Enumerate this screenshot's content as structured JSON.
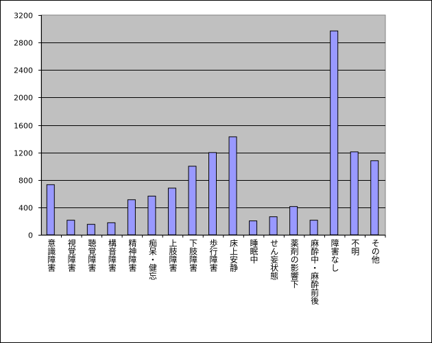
{
  "chart_data": {
    "type": "bar",
    "title": "",
    "xlabel": "",
    "ylabel": "",
    "ylim": [
      0,
      3200
    ],
    "yticks": [
      0,
      400,
      800,
      1200,
      1600,
      2000,
      2400,
      2800,
      3200
    ],
    "grid": true,
    "categories": [
      "意識障害",
      "視覚障害",
      "聴覚障害",
      "構音障害",
      "精神障害",
      "痴呆・健忘",
      "上肢障害",
      "下肢障害",
      "歩行障害",
      "床上安静",
      "睡眠中",
      "せん妄状態",
      "薬剤の影響下",
      "麻酔中・麻酔前後",
      "障害なし",
      "不明",
      "その他"
    ],
    "values": [
      730,
      213,
      153,
      176,
      511,
      564,
      680,
      999,
      1198,
      1427,
      203,
      263,
      412,
      213,
      2969,
      1208,
      1079
    ],
    "colors": {
      "bar": "#9999ff",
      "plot_background": "#c0c0c0",
      "gridline": "#000000"
    }
  }
}
